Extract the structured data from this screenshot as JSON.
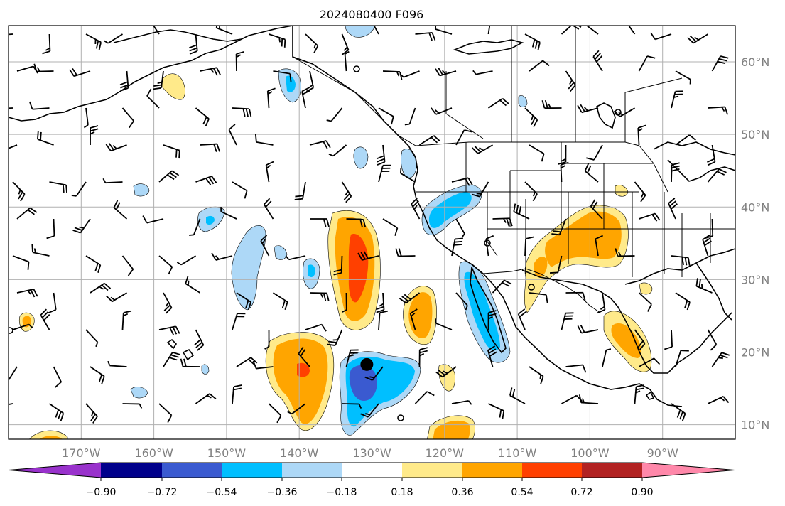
{
  "map": {
    "title": "2024080400 F096",
    "lon_labels": [
      "170°W",
      "160°W",
      "150°W",
      "140°W",
      "130°W",
      "120°W",
      "110°W",
      "100°W",
      "90°W"
    ],
    "lat_labels": [
      "60°N",
      "50°N",
      "40°N",
      "30°N",
      "20°N",
      "10°N"
    ],
    "lon_values": [
      -170,
      -160,
      -150,
      -140,
      -130,
      -120,
      -110,
      -100,
      -90
    ],
    "lat_values": [
      60,
      50,
      40,
      30,
      20,
      10
    ],
    "extent": {
      "lon_min": -180,
      "lon_max": -80,
      "lat_min": 8,
      "lat_max": 65
    },
    "marker": {
      "lon": -130.7,
      "lat": 18.3
    },
    "colorbar": {
      "tick_labels": [
        "−0.90",
        "−0.72",
        "−0.54",
        "−0.36",
        "−0.18",
        "0.18",
        "0.36",
        "0.54",
        "0.72",
        "0.90"
      ],
      "colors": [
        "#9932cc",
        "#00008b",
        "#3a5ad0",
        "#00bfff",
        "#add8f7",
        "#ffffff",
        "#ffea8a",
        "#ffa500",
        "#ff4000",
        "#b22222",
        "#ff88aa"
      ],
      "extend": "both"
    }
  }
}
